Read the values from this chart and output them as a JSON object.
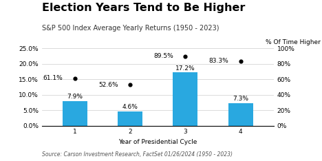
{
  "title": "Election Years Tend to Be Higher",
  "subtitle": "S&P 500 Index Average Yearly Returns (1950 - 2023)",
  "xlabel": "Year of Presidential Cycle",
  "ylabel_right": "% Of Time Higher",
  "source": "Source: Carson Investment Research, FactSet 01/26/2024 (1950 - 2023)",
  "categories": [
    1,
    2,
    3,
    4
  ],
  "bar_values": [
    7.9,
    4.6,
    17.2,
    7.3
  ],
  "bar_color": "#29a8e0",
  "dot_values": [
    61.1,
    52.6,
    89.5,
    83.3
  ],
  "ylim_left": [
    0,
    25
  ],
  "ylim_right": [
    0,
    100
  ],
  "yticks_left": [
    0.0,
    5.0,
    10.0,
    15.0,
    20.0,
    25.0
  ],
  "ytick_labels_left": [
    "0.0%",
    "5.0%",
    "10.0%",
    "15.0%",
    "20.0%",
    "25.0%"
  ],
  "yticks_right": [
    0,
    20,
    40,
    60,
    80,
    100
  ],
  "ytick_labels_right": [
    "0%",
    "20%",
    "40%",
    "60%",
    "80%",
    "100%"
  ],
  "background_color": "#ffffff",
  "title_fontsize": 11.5,
  "subtitle_fontsize": 7,
  "label_fontsize": 6.5,
  "tick_fontsize": 6.5,
  "source_fontsize": 5.5,
  "bar_width": 0.45
}
